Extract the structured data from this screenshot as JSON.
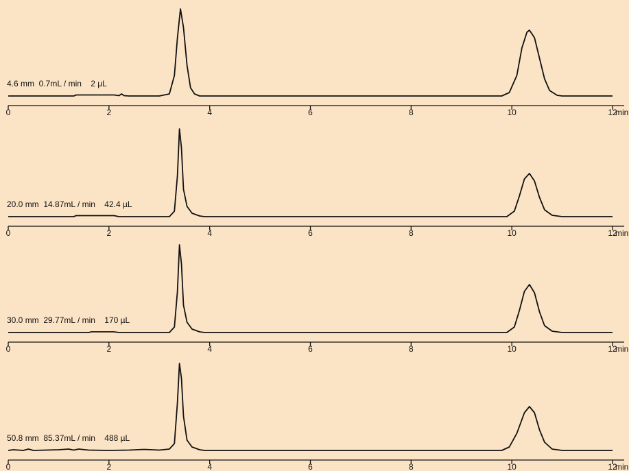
{
  "chart_data": [
    {
      "type": "line",
      "title": "4.6 mm  0.7mL / min    2 µL",
      "xlabel": "min",
      "xlim": [
        0,
        12
      ],
      "xticks": [
        0,
        2,
        4,
        6,
        8,
        10,
        12
      ],
      "ylim": [
        0,
        130
      ],
      "series": [
        {
          "color": "#111111",
          "x": [
            0,
            1.3,
            1.35,
            2.1,
            2.2,
            2.25,
            2.3,
            2.4,
            3.0,
            3.2,
            3.3,
            3.36,
            3.42,
            3.48,
            3.55,
            3.62,
            3.7,
            3.8,
            9.8,
            9.95,
            10.1,
            10.2,
            10.3,
            10.35,
            10.45,
            10.55,
            10.65,
            10.75,
            10.9,
            11.0,
            12
          ],
          "values": [
            0,
            0,
            1.5,
            1.5,
            0.5,
            3,
            0.5,
            0,
            0,
            3,
            30,
            85,
            127,
            100,
            45,
            12,
            3,
            0,
            0,
            5,
            30,
            70,
            93,
            96,
            85,
            55,
            25,
            8,
            1,
            0,
            0
          ]
        }
      ]
    },
    {
      "type": "line",
      "title": "20.0 mm  14.87mL / min    42.4 µL",
      "xlabel": "min",
      "xlim": [
        0,
        12
      ],
      "xticks": [
        0,
        2,
        4,
        6,
        8,
        10,
        12
      ],
      "ylim": [
        0,
        130
      ],
      "series": [
        {
          "color": "#111111",
          "x": [
            0,
            1.3,
            1.35,
            2.1,
            2.2,
            3.2,
            3.3,
            3.36,
            3.4,
            3.44,
            3.48,
            3.55,
            3.65,
            3.8,
            3.9,
            9.9,
            10.05,
            10.15,
            10.25,
            10.35,
            10.45,
            10.55,
            10.65,
            10.8,
            11.0,
            12
          ],
          "values": [
            0,
            0,
            1.5,
            1.5,
            0,
            0,
            8,
            60,
            128,
            100,
            40,
            15,
            5,
            1,
            0,
            0,
            8,
            30,
            55,
            63,
            52,
            28,
            10,
            2,
            0,
            0
          ]
        }
      ]
    },
    {
      "type": "line",
      "title": "30.0 mm  29.77mL / min    170 µL",
      "xlabel": "min",
      "xlim": [
        0,
        12
      ],
      "xticks": [
        0,
        2,
        4,
        6,
        8,
        10,
        12
      ],
      "ylim": [
        0,
        130
      ],
      "series": [
        {
          "color": "#111111",
          "x": [
            0,
            1.6,
            1.65,
            2.1,
            2.2,
            3.2,
            3.3,
            3.36,
            3.4,
            3.44,
            3.48,
            3.55,
            3.65,
            3.8,
            3.9,
            9.9,
            10.05,
            10.15,
            10.25,
            10.35,
            10.45,
            10.55,
            10.65,
            10.8,
            11.0,
            12
          ],
          "values": [
            0,
            0,
            1,
            1,
            0,
            0,
            8,
            60,
            128,
            100,
            40,
            15,
            5,
            1,
            0,
            0,
            8,
            32,
            60,
            70,
            58,
            30,
            10,
            2,
            0,
            0
          ]
        }
      ]
    },
    {
      "type": "line",
      "title": "50.8 mm  85.37mL / min    488 µL",
      "xlabel": "min",
      "xlim": [
        0,
        12
      ],
      "xticks": [
        0,
        2,
        4,
        6,
        8,
        10,
        12
      ],
      "ylim": [
        0,
        130
      ],
      "series": [
        {
          "color": "#111111",
          "x": [
            0,
            0.1,
            0.3,
            0.4,
            0.5,
            1.0,
            1.2,
            1.3,
            1.4,
            1.6,
            2.0,
            2.4,
            2.7,
            3.0,
            3.2,
            3.3,
            3.36,
            3.4,
            3.44,
            3.48,
            3.55,
            3.65,
            3.8,
            3.9,
            9.8,
            9.95,
            10.1,
            10.25,
            10.35,
            10.45,
            10.55,
            10.65,
            10.8,
            11.0,
            12
          ],
          "values": [
            0,
            1,
            0,
            2,
            0,
            1,
            2,
            0.5,
            2,
            0.5,
            0,
            0.5,
            1.5,
            0.5,
            2,
            10,
            70,
            127,
            105,
            50,
            15,
            5,
            1,
            0,
            0,
            5,
            25,
            55,
            64,
            55,
            30,
            12,
            2,
            0,
            0
          ]
        }
      ]
    }
  ]
}
